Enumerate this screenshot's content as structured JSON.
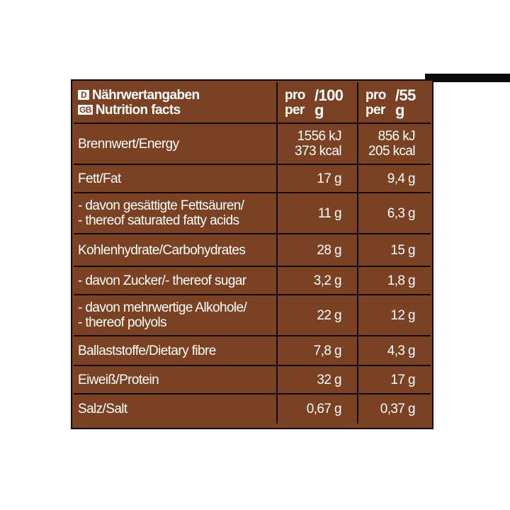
{
  "header": {
    "de_badge": "D",
    "de_title": "Nährwertangaben",
    "gb_badge": "GB",
    "gb_title": "Nutrition facts",
    "col1": {
      "pro": "pro",
      "amount": "/100 g",
      "per": "per"
    },
    "col2": {
      "pro": "pro",
      "amount": "/55 g",
      "per": "per"
    }
  },
  "rows": [
    {
      "label_1": "Brennwert/Energy",
      "label_2": "",
      "v100_1": "1556 kJ",
      "v100_2": "373 kcal",
      "v55_1": "856 kJ",
      "v55_2": "205 kcal"
    },
    {
      "label_1": "Fett/Fat",
      "label_2": "",
      "v100_1": "17 g",
      "v100_2": "",
      "v55_1": "9,4 g",
      "v55_2": ""
    },
    {
      "label_1": "- davon gesättigte Fettsäuren/",
      "label_2": "- thereof saturated fatty acids",
      "v100_1": "11 g",
      "v100_2": "",
      "v55_1": "6,3 g",
      "v55_2": ""
    },
    {
      "label_1": "Kohlenhydrate/Carbohydrates",
      "label_2": "",
      "v100_1": "28 g",
      "v100_2": "",
      "v55_1": "15 g",
      "v55_2": ""
    },
    {
      "label_1": "- davon Zucker/- thereof sugar",
      "label_2": "",
      "v100_1": "3,2 g",
      "v100_2": "",
      "v55_1": "1,8 g",
      "v55_2": ""
    },
    {
      "label_1": "- davon mehrwertige Alkohole/",
      "label_2": "- thereof polyols",
      "v100_1": "22 g",
      "v100_2": "",
      "v55_1": "12 g",
      "v55_2": ""
    },
    {
      "label_1": "Ballaststoffe/Dietary fibre",
      "label_2": "",
      "v100_1": "7,8 g",
      "v100_2": "",
      "v55_1": "4,3 g",
      "v55_2": ""
    },
    {
      "label_1": "Eiweiß/Protein",
      "label_2": "",
      "v100_1": "32 g",
      "v100_2": "",
      "v55_1": "17 g",
      "v55_2": ""
    },
    {
      "label_1": "Salz/Salt",
      "label_2": "",
      "v100_1": "0,67 g",
      "v100_2": "",
      "v55_1": "0,37 g",
      "v55_2": ""
    }
  ]
}
